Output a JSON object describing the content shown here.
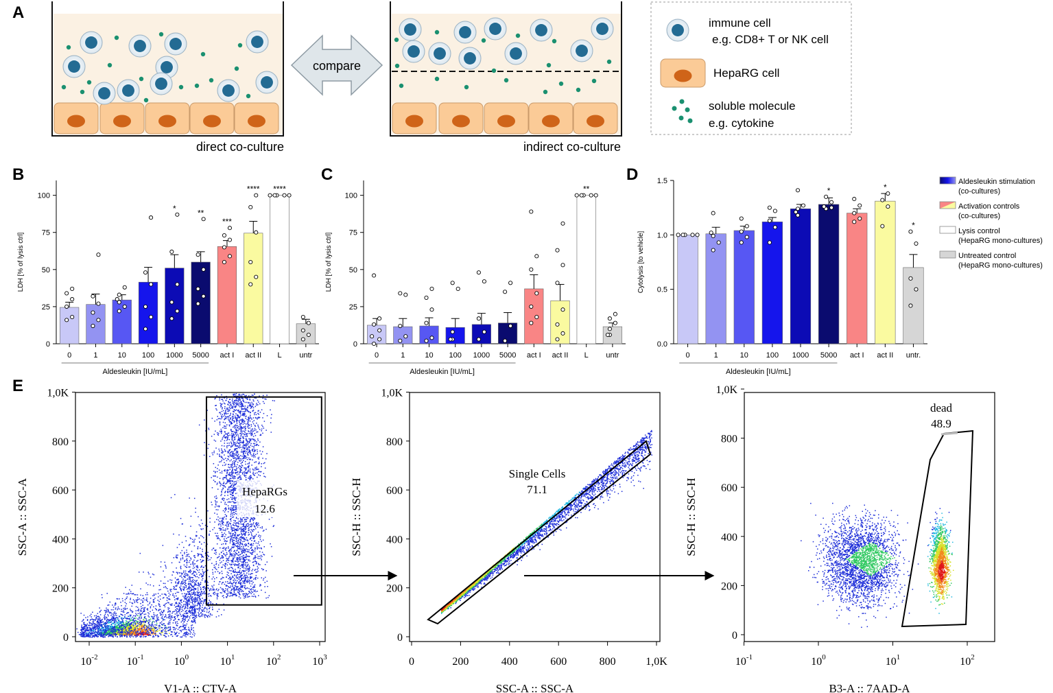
{
  "panel_letters": {
    "a": "A",
    "b": "B",
    "c": "C",
    "d": "D",
    "e": "E"
  },
  "panel_a": {
    "compare_label": "compare",
    "direct_label": "direct co-culture",
    "indirect_label": "indirect co-culture",
    "legend": {
      "immune_line1": "immune cell",
      "immune_line2": "e.g. CD8+ T or NK cell",
      "hepa": "HepaRG cell",
      "soluble_line1": "soluble molecule",
      "soluble_line2": "e.g. cytokine"
    }
  },
  "colors": {
    "c0": "#c8c8f7",
    "c1": "#9393f2",
    "c10": "#5757f3",
    "c100": "#1515ec",
    "c1000": "#0c0bb5",
    "c5000": "#0a0b6f",
    "actI": "#f98585",
    "actII": "#fafaa0",
    "L": "#ffffff",
    "untr": "#d6d6d6",
    "medium": "#fbf1e3",
    "hepa_fill": "#fbcb97",
    "hepa_nucleus": "#cf6419",
    "immune_outer": "#e8f1f7",
    "immune_nucleus": "#236b93",
    "dot": "#1a9070"
  },
  "chart_data": [
    {
      "id": "B",
      "type": "bar",
      "categories": [
        "0",
        "1",
        "10",
        "100",
        "1000",
        "5000",
        "act I",
        "act II",
        "L",
        "untr"
      ],
      "values": [
        24.5,
        26.5,
        29.5,
        41.5,
        51,
        55,
        65.5,
        74.5,
        100,
        13.5
      ],
      "errors": [
        3.5,
        7,
        3.5,
        10,
        9,
        7,
        4,
        8,
        0,
        3
      ],
      "points": [
        [
          16,
          18,
          25,
          30,
          34,
          37
        ],
        [
          12,
          16,
          21,
          27,
          32,
          60
        ],
        [
          22,
          25,
          28,
          30,
          33,
          38
        ],
        [
          10,
          18,
          25,
          40,
          48,
          85
        ],
        [
          17,
          22,
          28,
          40,
          62,
          87
        ],
        [
          27,
          32,
          37,
          50,
          60,
          84
        ],
        [
          55,
          59,
          65,
          70,
          73,
          78
        ],
        [
          40,
          45,
          55,
          75,
          92,
          100
        ],
        [
          100,
          100,
          100,
          100,
          100
        ],
        [
          3,
          6,
          9,
          14,
          18
        ]
      ],
      "significance": [
        "",
        "",
        "",
        "",
        "*",
        "**",
        "***",
        "****",
        "****",
        ""
      ],
      "ylabel": "LDH [% of lysis ctrl]",
      "xlabel": "Aldesleukin [IU/mL]",
      "ylim": [
        0,
        110
      ],
      "yticks": [
        0,
        25,
        50,
        75,
        100
      ],
      "ytick_labels": [
        "0",
        "25",
        "50",
        "75",
        "100"
      ]
    },
    {
      "id": "C",
      "type": "bar",
      "categories": [
        "0",
        "1",
        "10",
        "100",
        "1000",
        "5000",
        "act I",
        "act II",
        "L",
        "untr"
      ],
      "values": [
        12.5,
        11.5,
        12,
        11,
        13,
        14,
        37,
        29,
        100,
        11.5
      ],
      "errors": [
        4.5,
        5.5,
        5.5,
        6,
        7.5,
        7,
        9.5,
        11,
        0,
        2.5
      ],
      "points": [
        [
          0,
          3,
          5,
          9,
          13,
          17,
          46
        ],
        [
          2,
          5,
          12,
          33,
          34
        ],
        [
          2,
          4,
          14,
          23,
          31,
          37
        ],
        [
          3,
          3,
          8,
          37,
          41
        ],
        [
          3,
          8,
          17,
          42,
          48
        ],
        [
          2,
          12,
          35,
          41
        ],
        [
          14,
          18,
          25,
          34,
          50,
          59,
          89
        ],
        [
          3,
          7,
          13,
          23,
          41,
          53,
          63,
          81
        ],
        [
          100,
          100,
          100,
          100,
          100
        ],
        [
          6,
          6,
          10,
          14,
          17,
          20
        ]
      ],
      "significance": [
        "",
        "",
        "",
        "",
        "",
        "",
        "",
        "",
        "**",
        ""
      ],
      "ylabel": "LDH [% of lysis ctrl]",
      "xlabel": "Aldesleukin [IU/mL]",
      "ylim": [
        0,
        110
      ],
      "yticks": [
        0,
        25,
        50,
        75,
        100
      ],
      "ytick_labels": [
        "0",
        "25",
        "50",
        "75",
        "100"
      ]
    },
    {
      "id": "D",
      "type": "bar",
      "categories": [
        "0",
        "1",
        "10",
        "100",
        "1000",
        "5000",
        "act I",
        "act II",
        "untr."
      ],
      "values": [
        1.0,
        1.01,
        1.04,
        1.12,
        1.24,
        1.28,
        1.2,
        1.31,
        0.7
      ],
      "errors": [
        0,
        0.06,
        0.04,
        0.04,
        0.04,
        0.06,
        0.04,
        0.07,
        0.12
      ],
      "points": [
        [
          1,
          1,
          1,
          1,
          1
        ],
        [
          0.86,
          0.93,
          0.99,
          1.02,
          1.2
        ],
        [
          0.93,
          0.98,
          1.03,
          1.08,
          1.15
        ],
        [
          0.93,
          1.07,
          1.13,
          1.22,
          1.25
        ],
        [
          1.18,
          1.21,
          1.24,
          1.27,
          1.41
        ],
        [
          1.24,
          1.25,
          1.26,
          1.3,
          1.35
        ],
        [
          1.12,
          1.15,
          1.2,
          1.27,
          1.33
        ],
        [
          1.08,
          1.26,
          1.32,
          1.38
        ],
        [
          0.35,
          0.5,
          0.6,
          0.92,
          1.03
        ]
      ],
      "significance": [
        "",
        "",
        "",
        "",
        "",
        "*",
        "",
        "*",
        "*"
      ],
      "ylabel": "Cytolysis [to vehicle]",
      "xlabel": "Aldesleukin [IU/mL]",
      "ylim": [
        0,
        1.5
      ],
      "yticks": [
        0,
        0.5,
        1.0,
        1.5
      ],
      "ytick_labels": [
        "0.0",
        "0.5",
        "1.0",
        "1.5"
      ]
    },
    {
      "id": "E1",
      "type": "scatter",
      "xlabel": "V1-A :: CTV-A",
      "ylabel": "SSC-A :: SSC-A",
      "x_scale": "log",
      "xlim": [
        0.004,
        1500
      ],
      "ylim": [
        -40,
        1000
      ],
      "xtick_labels": [
        "10",
        "10",
        "10",
        "10",
        "10",
        "10"
      ],
      "xtick_exponents": [
        "-2",
        "-1",
        "0",
        "1",
        "2",
        "3"
      ],
      "ytick_labels": [
        "0",
        "200",
        "400",
        "600",
        "800",
        "1,0K"
      ],
      "gate": {
        "name": "HepaRGs",
        "value": "12.6",
        "x_range": [
          3.5,
          1100
        ],
        "y_range": [
          130,
          980
        ]
      }
    },
    {
      "id": "E2",
      "type": "scatter",
      "xlabel": "SSC-A :: SSC-A",
      "ylabel": "SSC-H :: SSC-H",
      "x_scale": "linear",
      "xlim": [
        0,
        1000
      ],
      "ylim": [
        -40,
        1000
      ],
      "xtick_labels": [
        "0",
        "200",
        "400",
        "600",
        "800",
        "1,0K"
      ],
      "ytick_labels": [
        "0",
        "200",
        "400",
        "600",
        "800",
        "1,0K"
      ],
      "gate": {
        "name": "Single Cells",
        "value": "71.1"
      }
    },
    {
      "id": "E3",
      "type": "scatter",
      "xlabel": "B3-A :: 7AAD-A",
      "ylabel": "SSC-H :: SSC-H",
      "x_scale": "log",
      "xlim": [
        0.06,
        300
      ],
      "ylim": [
        -40,
        1000
      ],
      "xtick_labels": [
        "10",
        "10",
        "10",
        "10"
      ],
      "xtick_exponents": [
        "-1",
        "0",
        "1",
        "2"
      ],
      "ytick_labels": [
        "0",
        "200",
        "400",
        "600",
        "800",
        "1,0K"
      ],
      "gate": {
        "name": "dead",
        "value": "48.9"
      }
    }
  ],
  "legend": [
    {
      "line1": "Aldesleukin stimulation",
      "line2": "(co-cultures)",
      "swatch": "blue-gradient"
    },
    {
      "line1": "Activation controls",
      "line2": "(co-cultures)",
      "swatch": "red-yellow"
    },
    {
      "line1": "Lysis control",
      "line2": "(HepaRG mono-cultures)",
      "swatch": "white"
    },
    {
      "line1": "Untreated control",
      "line2": "(HepaRG mono-cultures)",
      "swatch": "grey"
    }
  ]
}
